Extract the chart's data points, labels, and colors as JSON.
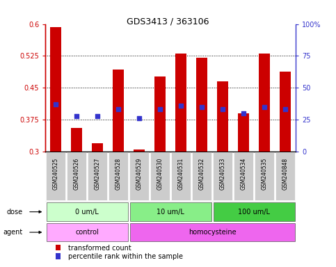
{
  "title": "GDS3413 / 363106",
  "samples": [
    "GSM240525",
    "GSM240526",
    "GSM240527",
    "GSM240528",
    "GSM240529",
    "GSM240530",
    "GSM240531",
    "GSM240532",
    "GSM240533",
    "GSM240534",
    "GSM240535",
    "GSM240848"
  ],
  "transformed_count": [
    0.593,
    0.355,
    0.32,
    0.493,
    0.305,
    0.477,
    0.53,
    0.521,
    0.465,
    0.39,
    0.53,
    0.488
  ],
  "percentile_pct": [
    37,
    28,
    28,
    33,
    26,
    33,
    36,
    35,
    33,
    30,
    35,
    33
  ],
  "bar_color": "#cc0000",
  "dot_color": "#3333cc",
  "ylim": [
    0.3,
    0.6
  ],
  "y2lim": [
    0,
    100
  ],
  "yticks": [
    0.3,
    0.375,
    0.45,
    0.525,
    0.6
  ],
  "y2ticks": [
    0,
    25,
    50,
    75,
    100
  ],
  "ytick_labels": [
    "0.3",
    "0.375",
    "0.45",
    "0.525",
    "0.6"
  ],
  "y2tick_labels": [
    "0",
    "25",
    "50",
    "75",
    "100%"
  ],
  "dose_groups": [
    {
      "label": "0 um/L",
      "start": 0,
      "end": 4,
      "color": "#ccffcc"
    },
    {
      "label": "10 um/L",
      "start": 4,
      "end": 8,
      "color": "#88ee88"
    },
    {
      "label": "100 um/L",
      "start": 8,
      "end": 12,
      "color": "#44cc44"
    }
  ],
  "agent_groups": [
    {
      "label": "control",
      "start": 0,
      "end": 4,
      "color": "#ffaaff"
    },
    {
      "label": "homocysteine",
      "start": 4,
      "end": 12,
      "color": "#ee66ee"
    }
  ],
  "dose_label": "dose",
  "agent_label": "agent",
  "legend_tc": "transformed count",
  "legend_pr": "percentile rank within the sample",
  "axis_color_left": "#cc0000",
  "axis_color_right": "#3333cc",
  "sample_box_color": "#cccccc",
  "grid_dotted_color": "#000000"
}
